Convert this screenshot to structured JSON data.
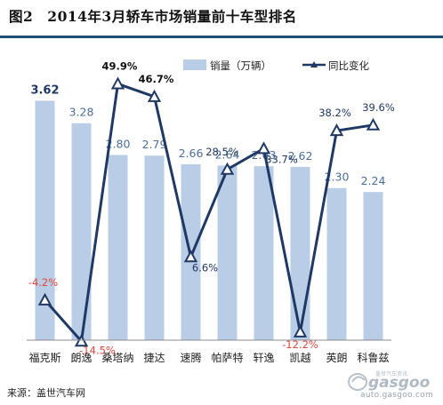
{
  "title": "图2　2014年3月轿车市场销量前十车型排名",
  "source": "来源：盖世汽车网",
  "watermark": {
    "brand": "gasgoo",
    "caption": "盖世汽车资讯",
    "url": "auto.gasgoo.com"
  },
  "colors": {
    "bar": "#b9cde6",
    "line": "#1f3864",
    "value_label": "#4a6f9e",
    "positive_label": "#1f3864",
    "negative_label": "#e0463a",
    "rule": "#1f4e79"
  },
  "chart_data": {
    "type": "bar",
    "categories": [
      "福克斯",
      "朗逸",
      "桑塔纳",
      "捷达",
      "速腾",
      "帕萨特",
      "轩逸",
      "凯越",
      "英朗",
      "科鲁兹"
    ],
    "series": [
      {
        "name": "销量（万辆）",
        "type": "bar",
        "axis": "left",
        "values": [
          3.62,
          3.28,
          2.8,
          2.79,
          2.66,
          2.64,
          2.63,
          2.62,
          2.3,
          2.24
        ],
        "labels": [
          "3.62",
          "3.28",
          "2.80",
          "2.79",
          "2.66",
          "2.64",
          "2.63",
          "2.62",
          "2.30",
          "2.24"
        ]
      },
      {
        "name": "同比变化",
        "type": "line",
        "axis": "right",
        "values": [
          -4.2,
          -14.5,
          49.9,
          46.7,
          6.6,
          28.5,
          33.7,
          -12.2,
          38.2,
          39.6
        ],
        "labels": [
          "-4.2%",
          "-14.5%",
          "49.9%",
          "46.7%",
          "6.6%",
          "28.5%",
          "33.7%",
          "-12.2%",
          "38.2%",
          "39.6%"
        ]
      }
    ],
    "ylim_left": [
      0,
      3.8
    ],
    "ylim_right": [
      -18,
      62
    ],
    "legend": "top-right",
    "grid": false
  }
}
